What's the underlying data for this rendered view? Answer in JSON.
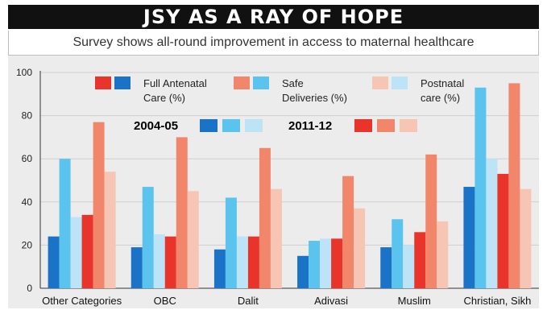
{
  "header": {
    "title": "JSY AS A RAY OF HOPE",
    "subtitle": "Survey shows all-round improvement in access to maternal healthcare"
  },
  "chart_data": {
    "type": "bar",
    "title": "JSY AS A RAY OF HOPE",
    "subtitle": "Survey shows all-round improvement in access to maternal healthcare",
    "categories": [
      "Other Categories",
      "OBC",
      "Dalit",
      "Adivasi",
      "Muslim",
      "Christian, Sikh"
    ],
    "ylim": [
      0,
      100
    ],
    "yticks": [
      0,
      20,
      40,
      60,
      80,
      100
    ],
    "grid": true,
    "legend": {
      "placement": "top-left",
      "measures": [
        "Full Antenatal Care (%)",
        "Safe Deliveries (%)",
        "Postnatal care (%)"
      ],
      "measure_lines": [
        [
          "Full Antenatal",
          "Care (%)"
        ],
        [
          "Safe",
          "Deliveries (%)"
        ],
        [
          "Postnatal",
          "care (%)"
        ]
      ],
      "periods": [
        "2004-05",
        "2011-12"
      ]
    },
    "series": [
      {
        "name": "Full Antenatal Care (%)",
        "period": "2004-05",
        "color": "#1a73c6",
        "values": [
          24,
          19,
          18,
          15,
          19,
          47
        ]
      },
      {
        "name": "Safe Deliveries (%)",
        "period": "2004-05",
        "color": "#5bc4ee",
        "values": [
          60,
          47,
          42,
          22,
          32,
          93
        ]
      },
      {
        "name": "Postnatal care (%)",
        "period": "2004-05",
        "color": "#bde4f6",
        "values": [
          33,
          25,
          24,
          23,
          20,
          60
        ]
      },
      {
        "name": "Full Antenatal Care (%)",
        "period": "2011-12",
        "color": "#e8342a",
        "values": [
          34,
          24,
          24,
          23,
          26,
          53
        ]
      },
      {
        "name": "Safe Deliveries (%)",
        "period": "2011-12",
        "color": "#f2866b",
        "values": [
          77,
          70,
          65,
          52,
          62,
          95
        ]
      },
      {
        "name": "Postnatal care (%)",
        "period": "2011-12",
        "color": "#f7c5b4",
        "values": [
          54,
          45,
          46,
          37,
          31,
          46
        ]
      }
    ]
  }
}
